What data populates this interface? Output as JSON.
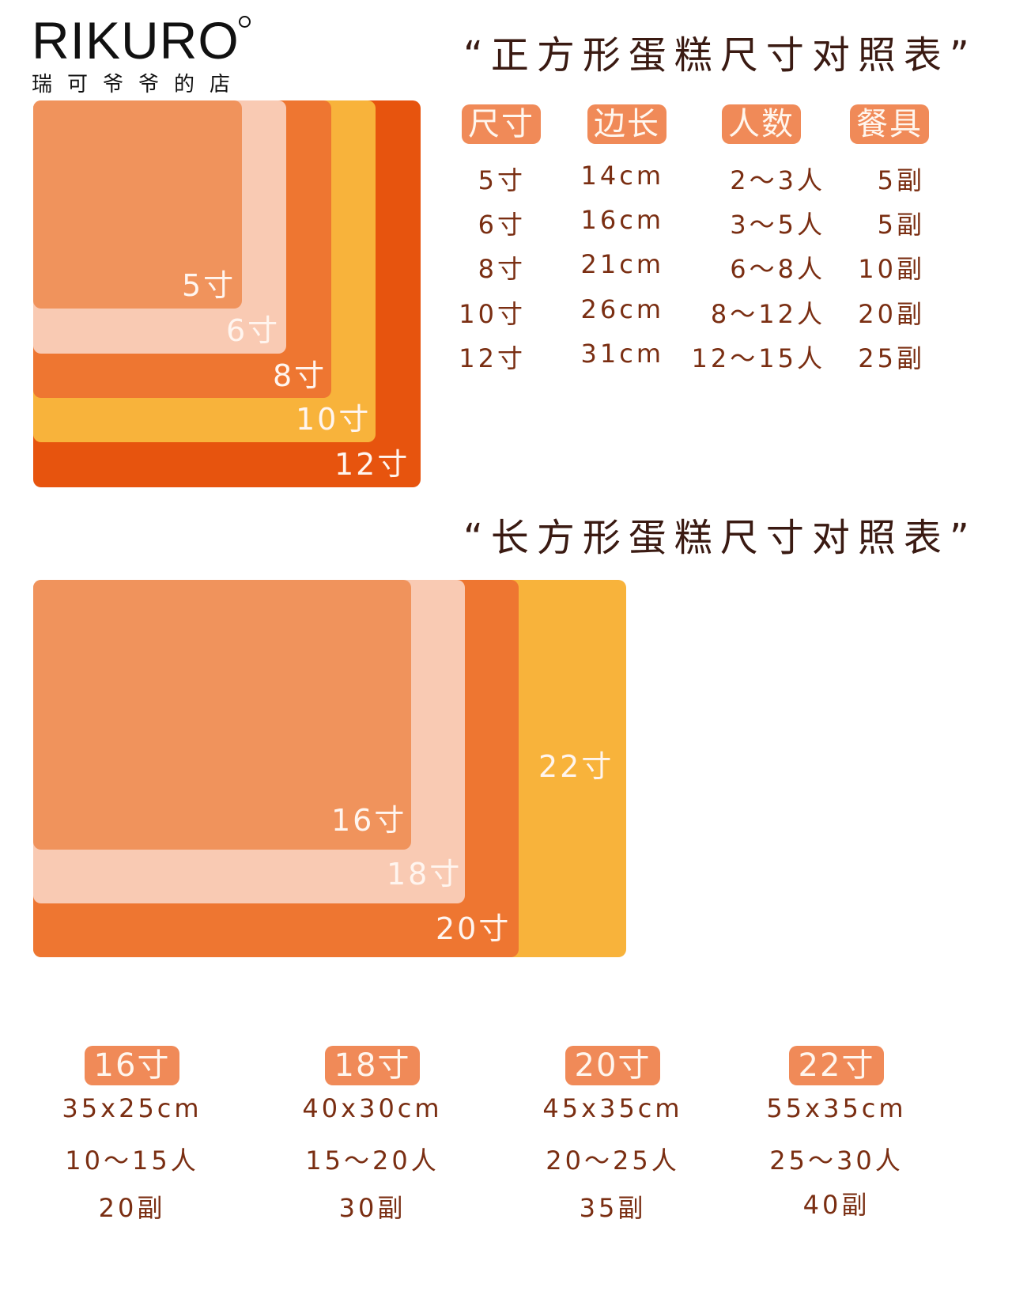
{
  "logo": {
    "brand": "RIKURO",
    "subtitle": "瑞可爷爷的店"
  },
  "square": {
    "title": "“正方形蛋糕尺寸对照表”",
    "boxes": [
      "5寸",
      "6寸",
      "8寸",
      "10寸",
      "12寸"
    ],
    "headers": [
      "尺寸",
      "边长",
      "人数",
      "餐具"
    ],
    "rows": [
      [
        "5寸",
        "14cm",
        "2～3人",
        "5副"
      ],
      [
        "6寸",
        "16cm",
        "3～5人",
        "5副"
      ],
      [
        "8寸",
        "21cm",
        "6～8人",
        "10副"
      ],
      [
        "10寸",
        "26cm",
        "8～12人",
        "20副"
      ],
      [
        "12寸",
        "31cm",
        "12～15人",
        "25副"
      ]
    ]
  },
  "rect": {
    "title": "“长方形蛋糕尺寸对照表”",
    "boxes": [
      "16寸",
      "18寸",
      "20寸",
      "22寸"
    ],
    "specs": [
      {
        "size": "16寸",
        "dims": "35x25cm",
        "people": "10～15人",
        "cutlery": "20副"
      },
      {
        "size": "18寸",
        "dims": "40x30cm",
        "people": "15～20人",
        "cutlery": "30副"
      },
      {
        "size": "20寸",
        "dims": "45x35cm",
        "people": "20～25人",
        "cutlery": "35副"
      },
      {
        "size": "22寸",
        "dims": "55x35cm",
        "people": "25～30人",
        "cutlery": "40副"
      }
    ]
  },
  "colors": {
    "peach": "#f0935c",
    "pale": "#f9cab3",
    "orange": "#ee7631",
    "yellow": "#f8b33b",
    "red_orange": "#e7540e",
    "text_brown": "#7a2e12",
    "pill": "#f08a58"
  }
}
